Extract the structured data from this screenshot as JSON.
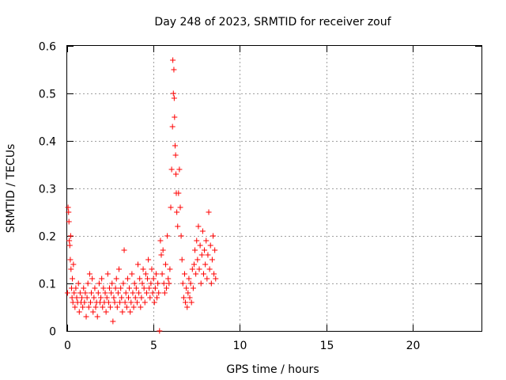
{
  "chart_data": {
    "type": "scatter",
    "title": "Day 248 of 2023, SRMTID for receiver zouf",
    "xlabel": "GPS time / hours",
    "ylabel": "SRMTID / TECUs",
    "xlim": [
      0,
      24
    ],
    "ylim": [
      0,
      0.6
    ],
    "x_ticks": [
      0,
      5,
      10,
      15,
      20
    ],
    "y_ticks": [
      0,
      0.1,
      0.2,
      0.3,
      0.4,
      0.5,
      0.6
    ],
    "x_tick_labels": [
      "0",
      "5",
      "10",
      "15",
      "20"
    ],
    "y_tick_labels": [
      "0",
      "0.1",
      "0.2",
      "0.3",
      "0.4",
      "0.5",
      "0.6"
    ],
    "grid": true,
    "marker": "+",
    "series_color": "#ff0000",
    "series": [
      {
        "name": "SRMTID",
        "points": [
          [
            0.02,
            0.08
          ],
          [
            0.05,
            0.26
          ],
          [
            0.08,
            0.25
          ],
          [
            0.1,
            0.23
          ],
          [
            0.12,
            0.19
          ],
          [
            0.15,
            0.18
          ],
          [
            0.18,
            0.15
          ],
          [
            0.2,
            0.2
          ],
          [
            0.22,
            0.13
          ],
          [
            0.25,
            0.09
          ],
          [
            0.28,
            0.07
          ],
          [
            0.3,
            0.11
          ],
          [
            0.33,
            0.06
          ],
          [
            0.36,
            0.14
          ],
          [
            0.4,
            0.08
          ],
          [
            0.45,
            0.05
          ],
          [
            0.5,
            0.09
          ],
          [
            0.55,
            0.07
          ],
          [
            0.6,
            0.06
          ],
          [
            0.65,
            0.1
          ],
          [
            0.7,
            0.04
          ],
          [
            0.75,
            0.08
          ],
          [
            0.8,
            0.06
          ],
          [
            0.85,
            0.07
          ],
          [
            0.9,
            0.05
          ],
          [
            0.95,
            0.09
          ],
          [
            1.0,
            0.06
          ],
          [
            1.05,
            0.08
          ],
          [
            1.1,
            0.03
          ],
          [
            1.15,
            0.07
          ],
          [
            1.2,
            0.1
          ],
          [
            1.25,
            0.05
          ],
          [
            1.3,
            0.12
          ],
          [
            1.35,
            0.06
          ],
          [
            1.4,
            0.08
          ],
          [
            1.45,
            0.11
          ],
          [
            1.5,
            0.04
          ],
          [
            1.55,
            0.07
          ],
          [
            1.6,
            0.09
          ],
          [
            1.65,
            0.05
          ],
          [
            1.7,
            0.06
          ],
          [
            1.75,
            0.03
          ],
          [
            1.8,
            0.08
          ],
          [
            1.85,
            0.1
          ],
          [
            1.9,
            0.06
          ],
          [
            1.95,
            0.07
          ],
          [
            2.0,
            0.11
          ],
          [
            2.05,
            0.05
          ],
          [
            2.1,
            0.09
          ],
          [
            2.15,
            0.06
          ],
          [
            2.2,
            0.08
          ],
          [
            2.25,
            0.04
          ],
          [
            2.3,
            0.07
          ],
          [
            2.35,
            0.12
          ],
          [
            2.4,
            0.06
          ],
          [
            2.45,
            0.09
          ],
          [
            2.5,
            0.05
          ],
          [
            2.55,
            0.08
          ],
          [
            2.6,
            0.1
          ],
          [
            2.65,
            0.02
          ],
          [
            2.7,
            0.07
          ],
          [
            2.75,
            0.06
          ],
          [
            2.8,
            0.09
          ],
          [
            2.85,
            0.11
          ],
          [
            2.9,
            0.05
          ],
          [
            2.95,
            0.08
          ],
          [
            3.0,
            0.13
          ],
          [
            3.05,
            0.06
          ],
          [
            3.1,
            0.09
          ],
          [
            3.15,
            0.07
          ],
          [
            3.2,
            0.04
          ],
          [
            3.25,
            0.1
          ],
          [
            3.3,
            0.17
          ],
          [
            3.35,
            0.06
          ],
          [
            3.4,
            0.08
          ],
          [
            3.45,
            0.05
          ],
          [
            3.5,
            0.11
          ],
          [
            3.55,
            0.07
          ],
          [
            3.6,
            0.09
          ],
          [
            3.65,
            0.04
          ],
          [
            3.7,
            0.06
          ],
          [
            3.75,
            0.12
          ],
          [
            3.8,
            0.08
          ],
          [
            3.85,
            0.05
          ],
          [
            3.9,
            0.1
          ],
          [
            3.95,
            0.07
          ],
          [
            4.0,
            0.09
          ],
          [
            4.05,
            0.06
          ],
          [
            4.1,
            0.14
          ],
          [
            4.15,
            0.08
          ],
          [
            4.2,
            0.11
          ],
          [
            4.25,
            0.05
          ],
          [
            4.3,
            0.07
          ],
          [
            4.35,
            0.1
          ],
          [
            4.4,
            0.13
          ],
          [
            4.45,
            0.09
          ],
          [
            4.5,
            0.06
          ],
          [
            4.55,
            0.12
          ],
          [
            4.6,
            0.08
          ],
          [
            4.65,
            0.11
          ],
          [
            4.7,
            0.15
          ],
          [
            4.75,
            0.09
          ],
          [
            4.8,
            0.07
          ],
          [
            4.85,
            0.1
          ],
          [
            4.9,
            0.13
          ],
          [
            4.95,
            0.08
          ],
          [
            5.0,
            0.11
          ],
          [
            5.05,
            0.06
          ],
          [
            5.1,
            0.09
          ],
          [
            5.15,
            0.12
          ],
          [
            5.2,
            0.07
          ],
          [
            5.25,
            0.1
          ],
          [
            5.3,
            0.08
          ],
          [
            5.35,
            0.0
          ],
          [
            5.4,
            0.19
          ],
          [
            5.45,
            0.16
          ],
          [
            5.5,
            0.12
          ],
          [
            5.55,
            0.17
          ],
          [
            5.6,
            0.1
          ],
          [
            5.65,
            0.08
          ],
          [
            5.7,
            0.14
          ],
          [
            5.75,
            0.09
          ],
          [
            5.8,
            0.2
          ],
          [
            5.85,
            0.11
          ],
          [
            5.9,
            0.1
          ],
          [
            5.95,
            0.13
          ],
          [
            6.0,
            0.26
          ],
          [
            6.05,
            0.34
          ],
          [
            6.1,
            0.43
          ],
          [
            6.12,
            0.57
          ],
          [
            6.15,
            0.5
          ],
          [
            6.18,
            0.55
          ],
          [
            6.2,
            0.49
          ],
          [
            6.22,
            0.45
          ],
          [
            6.25,
            0.39
          ],
          [
            6.28,
            0.37
          ],
          [
            6.3,
            0.33
          ],
          [
            6.32,
            0.29
          ],
          [
            6.35,
            0.25
          ],
          [
            6.4,
            0.22
          ],
          [
            6.45,
            0.29
          ],
          [
            6.5,
            0.34
          ],
          [
            6.55,
            0.26
          ],
          [
            6.6,
            0.2
          ],
          [
            6.65,
            0.15
          ],
          [
            6.7,
            0.1
          ],
          [
            6.75,
            0.07
          ],
          [
            6.8,
            0.12
          ],
          [
            6.85,
            0.06
          ],
          [
            6.9,
            0.09
          ],
          [
            6.95,
            0.05
          ],
          [
            7.0,
            0.08
          ],
          [
            7.05,
            0.11
          ],
          [
            7.1,
            0.07
          ],
          [
            7.15,
            0.1
          ],
          [
            7.2,
            0.06
          ],
          [
            7.25,
            0.13
          ],
          [
            7.3,
            0.09
          ],
          [
            7.35,
            0.14
          ],
          [
            7.4,
            0.17
          ],
          [
            7.45,
            0.12
          ],
          [
            7.5,
            0.19
          ],
          [
            7.55,
            0.15
          ],
          [
            7.6,
            0.22
          ],
          [
            7.65,
            0.13
          ],
          [
            7.7,
            0.18
          ],
          [
            7.75,
            0.1
          ],
          [
            7.8,
            0.16
          ],
          [
            7.85,
            0.21
          ],
          [
            7.9,
            0.12
          ],
          [
            7.95,
            0.17
          ],
          [
            8.0,
            0.14
          ],
          [
            8.05,
            0.19
          ],
          [
            8.1,
            0.11
          ],
          [
            8.15,
            0.16
          ],
          [
            8.2,
            0.25
          ],
          [
            8.25,
            0.13
          ],
          [
            8.3,
            0.18
          ],
          [
            8.35,
            0.1
          ],
          [
            8.4,
            0.15
          ],
          [
            8.45,
            0.2
          ],
          [
            8.5,
            0.12
          ],
          [
            8.55,
            0.17
          ],
          [
            8.6,
            0.11
          ]
        ]
      }
    ]
  }
}
